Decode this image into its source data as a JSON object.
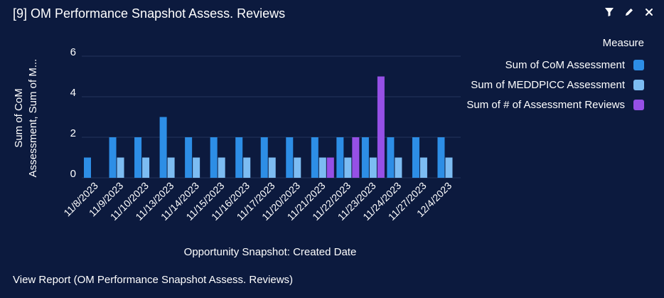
{
  "header": {
    "title": "[9] OM Performance Snapshot Assess. Reviews",
    "icons": [
      "filter-icon",
      "edit-icon",
      "close-icon"
    ]
  },
  "footer": {
    "link": "View Report (OM Performance Snapshot Assess. Reviews)"
  },
  "colors": {
    "background": "#0c1a3e",
    "grid": "#24345c",
    "text": "#ffffff"
  },
  "chart_data": {
    "type": "bar",
    "title": "",
    "xlabel": "Opportunity Snapshot: Created Date",
    "ylabel_lines": [
      "Sum of CoM",
      "Assessment, Sum of M..."
    ],
    "ylim": [
      0,
      6
    ],
    "yticks": [
      0,
      2,
      4,
      6
    ],
    "grid": true,
    "legend_title": "Measure",
    "legend_position": "right",
    "categories": [
      "11/8/2023",
      "11/9/2023",
      "11/10/2023",
      "11/13/2023",
      "11/14/2023",
      "11/15/2023",
      "11/16/2023",
      "11/17/2023",
      "11/20/2023",
      "11/21/2023",
      "11/22/2023",
      "11/23/2023",
      "11/24/2023",
      "11/27/2023",
      "12/4/2023"
    ],
    "series": [
      {
        "name": "Sum of CoM Assessment",
        "color": "#2d8ee6",
        "values": [
          1,
          2,
          2,
          3,
          2,
          2,
          2,
          2,
          2,
          2,
          2,
          2,
          2,
          2,
          2
        ]
      },
      {
        "name": "Sum of MEDDPICC Assessment",
        "color": "#7cbcf2",
        "values": [
          null,
          1,
          1,
          1,
          1,
          1,
          1,
          1,
          1,
          1,
          1,
          1,
          1,
          1,
          1
        ]
      },
      {
        "name": "Sum of # of Assessment Reviews",
        "color": "#9650e6",
        "values": [
          null,
          null,
          null,
          null,
          null,
          null,
          null,
          null,
          null,
          1,
          2,
          5,
          null,
          null,
          null
        ]
      }
    ]
  }
}
